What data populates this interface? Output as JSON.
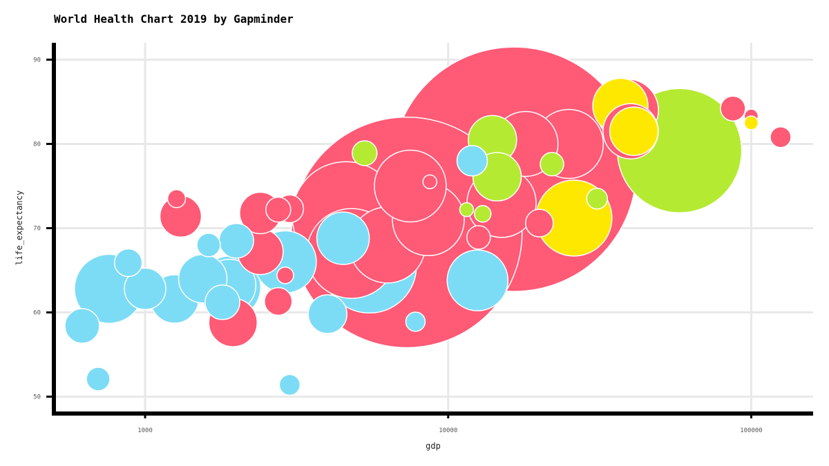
{
  "chart_data": {
    "type": "scatter",
    "title": "World Health Chart 2019 by Gapminder",
    "xlabel": "gdp",
    "ylabel": "life_expectancy",
    "x_scale": "log",
    "xlim": [
      500,
      160000
    ],
    "ylim": [
      48,
      92
    ],
    "x_ticks": [
      1000,
      10000,
      100000
    ],
    "x_tick_labels": [
      "1000",
      "10000",
      "100000"
    ],
    "y_ticks": [
      50,
      60,
      70,
      80,
      90
    ],
    "y_tick_labels": [
      "50",
      "60",
      "70",
      "80",
      "90"
    ],
    "grid": true,
    "legend": "none",
    "colors": {
      "pink": "#ff5a76",
      "cyan": "#7ddcf5",
      "green": "#b5ea33",
      "yellow": "#ffe800"
    },
    "points": [
      {
        "x": 16500,
        "y": 77.0,
        "r": 177,
        "color": "pink"
      },
      {
        "x": 7300,
        "y": 69.5,
        "r": 167,
        "color": "pink"
      },
      {
        "x": 4600,
        "y": 71.5,
        "r": 78,
        "color": "pink"
      },
      {
        "x": 5500,
        "y": 65.5,
        "r": 68,
        "color": "cyan"
      },
      {
        "x": 4800,
        "y": 67.0,
        "r": 65,
        "color": "pink"
      },
      {
        "x": 6300,
        "y": 68.0,
        "r": 55,
        "color": "pink"
      },
      {
        "x": 8600,
        "y": 71.0,
        "r": 52,
        "color": "pink"
      },
      {
        "x": 15000,
        "y": 73.0,
        "r": 50,
        "color": "pink"
      },
      {
        "x": 7500,
        "y": 75.0,
        "r": 52,
        "color": "pink"
      },
      {
        "x": 39000,
        "y": 84.0,
        "r": 45,
        "color": "pink"
      },
      {
        "x": 37000,
        "y": 84.5,
        "r": 40,
        "color": "yellow"
      },
      {
        "x": 40000,
        "y": 81.5,
        "r": 40,
        "color": "pink"
      },
      {
        "x": 26000,
        "y": 71.2,
        "r": 55,
        "color": "yellow"
      },
      {
        "x": 25000,
        "y": 80.0,
        "r": 50,
        "color": "pink"
      },
      {
        "x": 18000,
        "y": 80.0,
        "r": 47,
        "color": "pink"
      },
      {
        "x": 58000,
        "y": 79.2,
        "r": 90,
        "color": "green"
      },
      {
        "x": 41000,
        "y": 81.5,
        "r": 35,
        "color": "yellow"
      },
      {
        "x": 14000,
        "y": 80.5,
        "r": 35,
        "color": "green"
      },
      {
        "x": 12500,
        "y": 63.8,
        "r": 44,
        "color": "cyan"
      },
      {
        "x": 14500,
        "y": 76.1,
        "r": 35,
        "color": "green"
      },
      {
        "x": 760,
        "y": 62.8,
        "r": 50,
        "color": "cyan"
      },
      {
        "x": 1000,
        "y": 62.8,
        "r": 30,
        "color": "cyan"
      },
      {
        "x": 1250,
        "y": 61.6,
        "r": 35,
        "color": "cyan"
      },
      {
        "x": 1550,
        "y": 64.0,
        "r": 35,
        "color": "cyan"
      },
      {
        "x": 1900,
        "y": 63.0,
        "r": 45,
        "color": "cyan"
      },
      {
        "x": 1900,
        "y": 63.2,
        "r": 38,
        "color": "cyan"
      },
      {
        "x": 1800,
        "y": 61.2,
        "r": 25,
        "color": "cyan"
      },
      {
        "x": 2000,
        "y": 68.5,
        "r": 25,
        "color": "cyan"
      },
      {
        "x": 2900,
        "y": 66.0,
        "r": 45,
        "color": "cyan"
      },
      {
        "x": 2400,
        "y": 67.2,
        "r": 33,
        "color": "pink"
      },
      {
        "x": 2400,
        "y": 71.8,
        "r": 30,
        "color": "pink"
      },
      {
        "x": 4000,
        "y": 59.8,
        "r": 28,
        "color": "cyan"
      },
      {
        "x": 4500,
        "y": 68.8,
        "r": 38,
        "color": "cyan"
      },
      {
        "x": 1950,
        "y": 58.8,
        "r": 35,
        "color": "pink"
      },
      {
        "x": 1310,
        "y": 71.4,
        "r": 30,
        "color": "pink"
      },
      {
        "x": 880,
        "y": 65.9,
        "r": 20,
        "color": "cyan"
      },
      {
        "x": 620,
        "y": 58.4,
        "r": 25,
        "color": "cyan"
      },
      {
        "x": 700,
        "y": 52.1,
        "r": 17,
        "color": "cyan"
      },
      {
        "x": 3000,
        "y": 51.4,
        "r": 15,
        "color": "cyan"
      },
      {
        "x": 2750,
        "y": 61.3,
        "r": 20,
        "color": "pink"
      },
      {
        "x": 1270,
        "y": 73.5,
        "r": 13,
        "color": "pink"
      },
      {
        "x": 2750,
        "y": 72.2,
        "r": 18,
        "color": "pink"
      },
      {
        "x": 3000,
        "y": 72.3,
        "r": 20,
        "color": "pink"
      },
      {
        "x": 7800,
        "y": 58.9,
        "r": 14,
        "color": "cyan"
      },
      {
        "x": 5300,
        "y": 78.9,
        "r": 18,
        "color": "green"
      },
      {
        "x": 12600,
        "y": 68.9,
        "r": 17,
        "color": "pink"
      },
      {
        "x": 20000,
        "y": 70.6,
        "r": 20,
        "color": "pink"
      },
      {
        "x": 22000,
        "y": 77.6,
        "r": 17,
        "color": "green"
      },
      {
        "x": 31000,
        "y": 73.5,
        "r": 15,
        "color": "green"
      },
      {
        "x": 12000,
        "y": 78.0,
        "r": 22,
        "color": "cyan"
      },
      {
        "x": 1620,
        "y": 68.0,
        "r": 17,
        "color": "cyan"
      },
      {
        "x": 87000,
        "y": 84.2,
        "r": 18,
        "color": "pink"
      },
      {
        "x": 100000,
        "y": 83.3,
        "r": 10,
        "color": "pink"
      },
      {
        "x": 100000,
        "y": 82.5,
        "r": 10,
        "color": "yellow"
      },
      {
        "x": 125000,
        "y": 80.8,
        "r": 15,
        "color": "pink"
      },
      {
        "x": 8700,
        "y": 75.5,
        "r": 10,
        "color": "pink"
      },
      {
        "x": 13000,
        "y": 71.7,
        "r": 12,
        "color": "green"
      },
      {
        "x": 11500,
        "y": 72.2,
        "r": 10,
        "color": "green"
      },
      {
        "x": 2900,
        "y": 64.4,
        "r": 12,
        "color": "pink"
      }
    ]
  }
}
